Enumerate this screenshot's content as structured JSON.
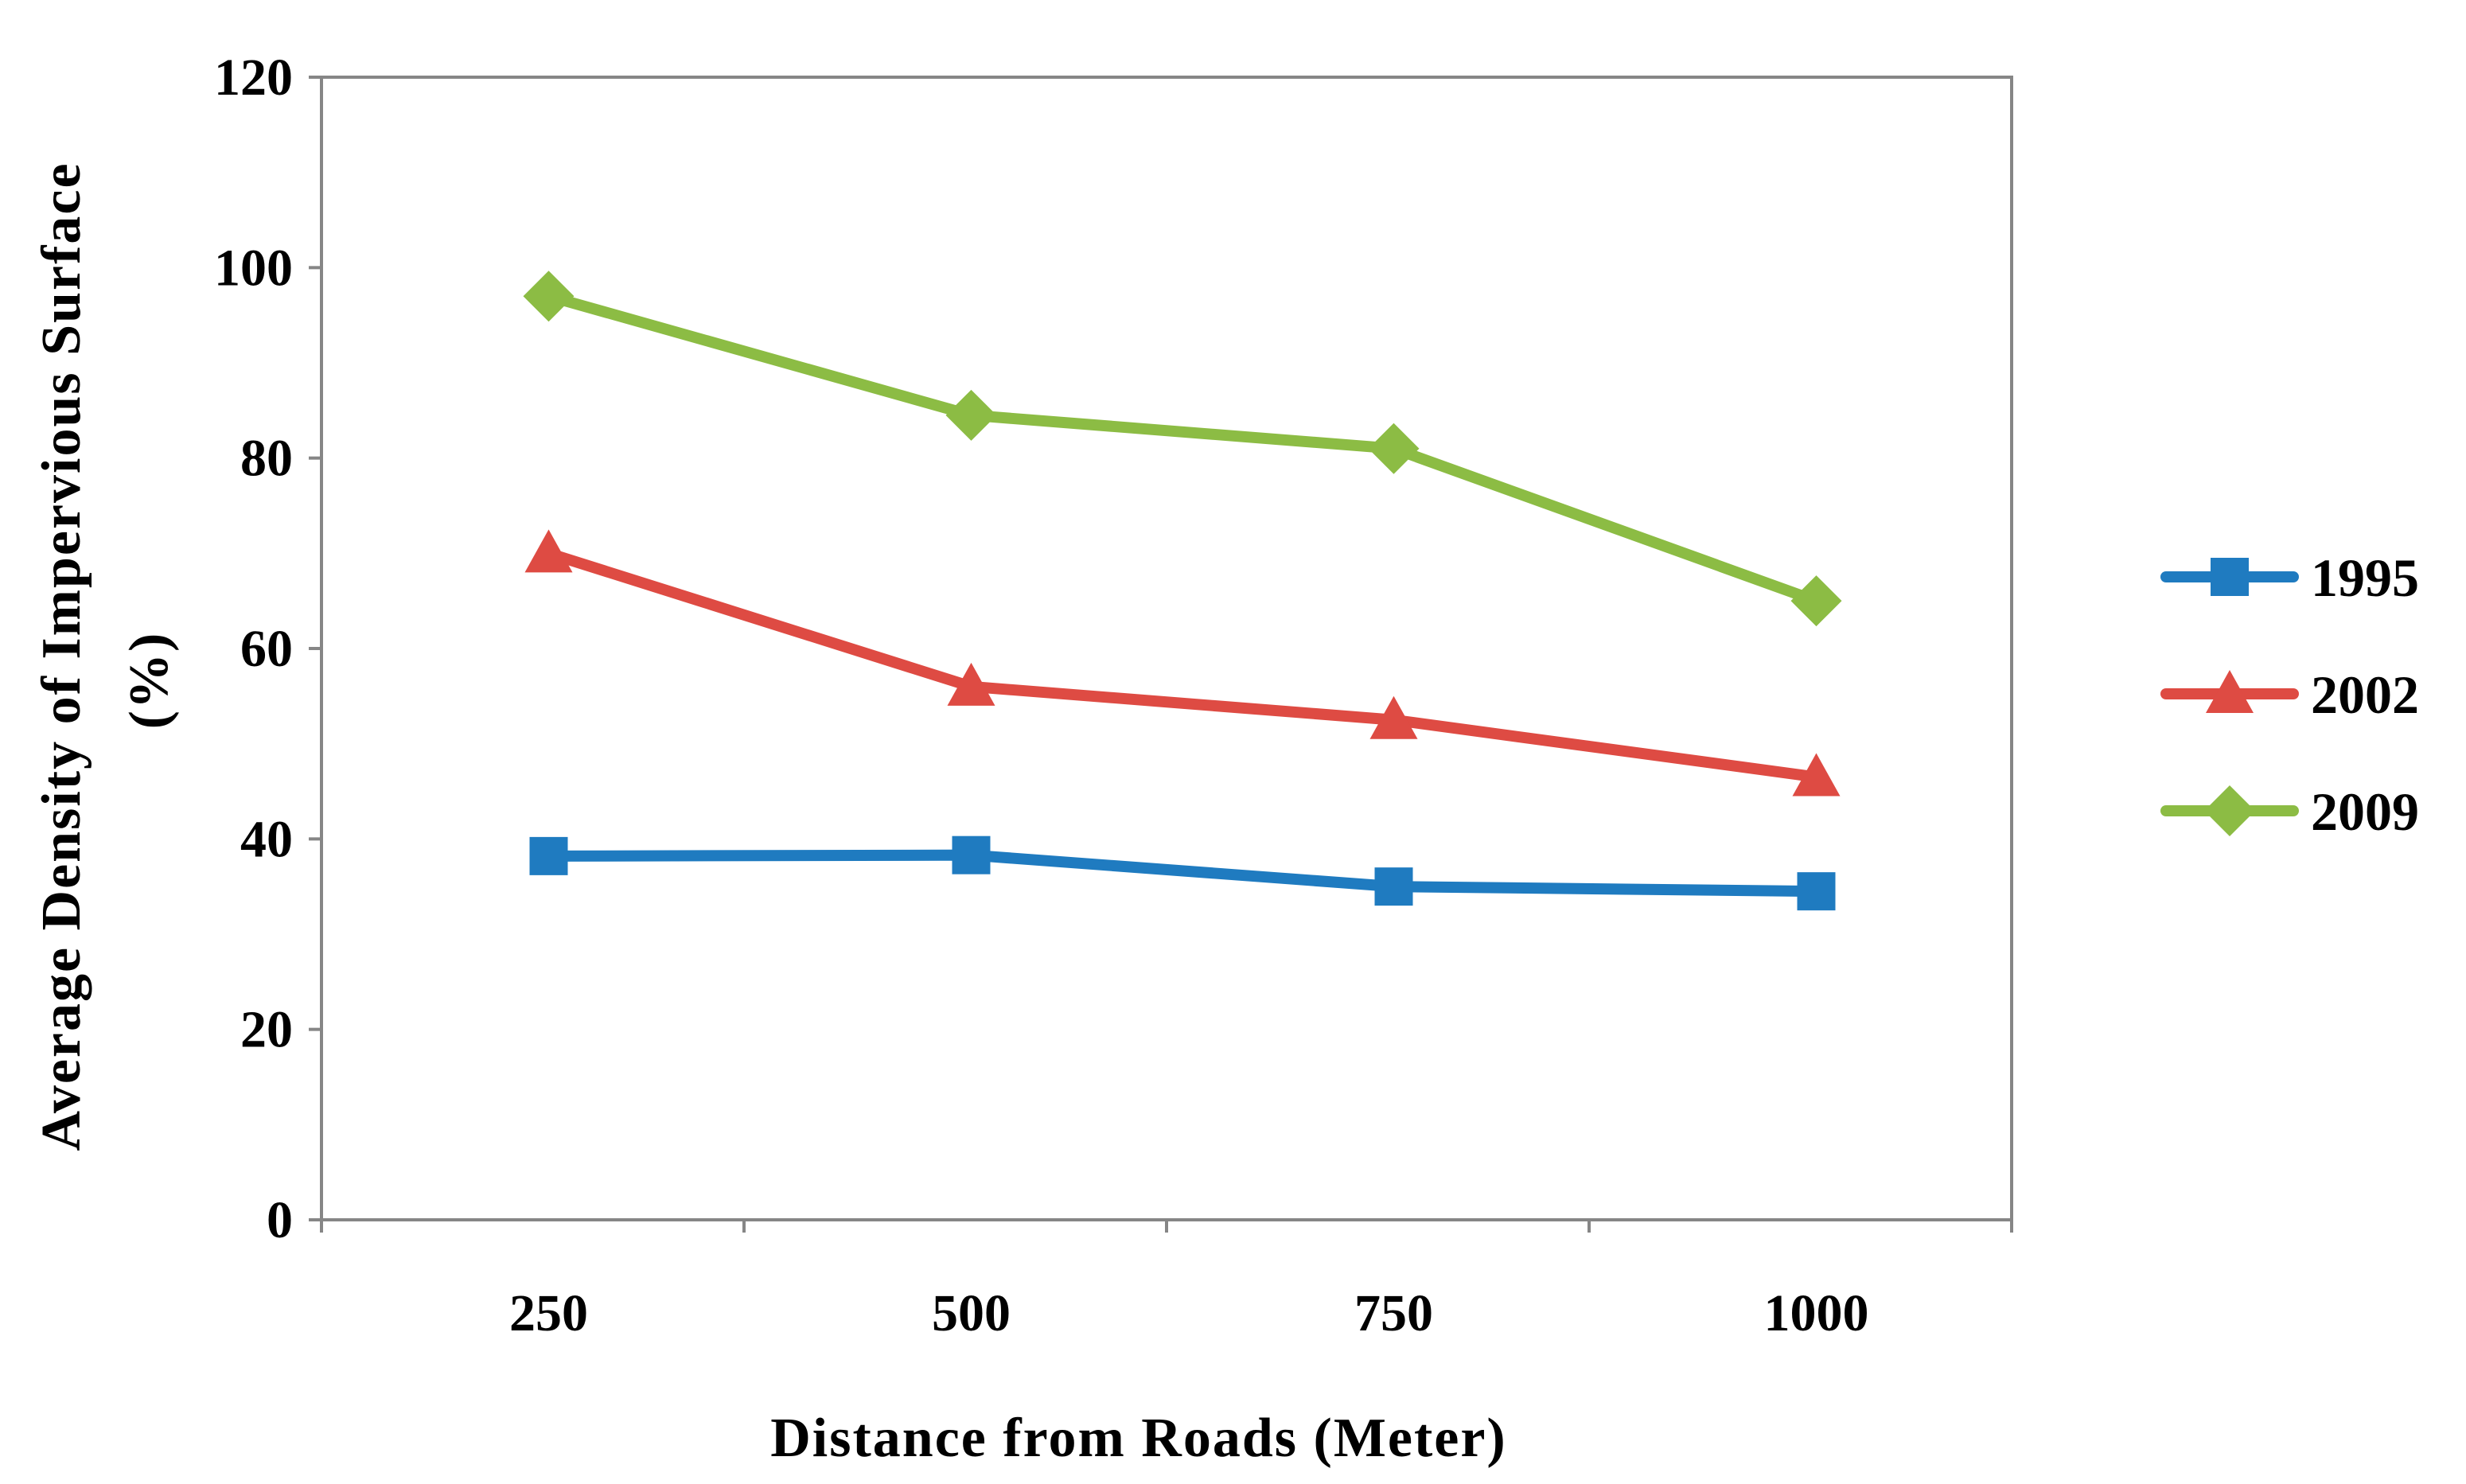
{
  "chart_data": {
    "type": "line",
    "title": "",
    "xlabel": "Distance from Roads (Meter)",
    "ylabel_lines": [
      "Average Density of Impervious Surface",
      "(%)"
    ],
    "categories": [
      "250",
      "500",
      "750",
      "1000"
    ],
    "ylim": [
      0,
      120
    ],
    "yticks": [
      0,
      20,
      40,
      60,
      80,
      100,
      120
    ],
    "grid": false,
    "legend_position": "right",
    "series": [
      {
        "name": "1995",
        "marker": "square",
        "color": "#1F7BC0",
        "values": [
          38.2,
          38.3,
          35.0,
          34.5
        ]
      },
      {
        "name": "2002",
        "marker": "triangle",
        "color": "#DE4B43",
        "values": [
          70.0,
          56.0,
          52.5,
          46.5
        ]
      },
      {
        "name": "2009",
        "marker": "diamond",
        "color": "#8CBC44",
        "values": [
          97.0,
          84.5,
          81.0,
          65.0
        ]
      }
    ]
  }
}
